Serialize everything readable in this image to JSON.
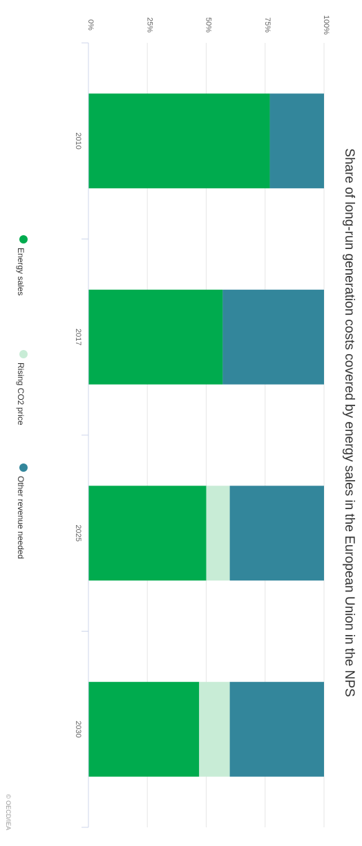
{
  "chart_data": {
    "type": "bar",
    "stacked": true,
    "orientation": "vertical",
    "title": "Share of long-run generation costs covered by energy sales in the European Union in the NPS",
    "categories": [
      "2010",
      "2017",
      "2025",
      "2030"
    ],
    "series": [
      {
        "name": "Energy sales",
        "color": "#00ab4e",
        "values": [
          77,
          57,
          50,
          47
        ]
      },
      {
        "name": "Rising CO2 price",
        "color": "#c8ecd6",
        "values": [
          0,
          0,
          10,
          13
        ]
      },
      {
        "name": "Other revenue needed",
        "color": "#33869b",
        "values": [
          23,
          43,
          40,
          40
        ]
      }
    ],
    "ylim": [
      0,
      100
    ],
    "yticks": [
      "0%",
      "25%",
      "50%",
      "75%",
      "100%"
    ],
    "grid": true,
    "legend_position": "bottom",
    "credit": "© OECD/IEA"
  }
}
